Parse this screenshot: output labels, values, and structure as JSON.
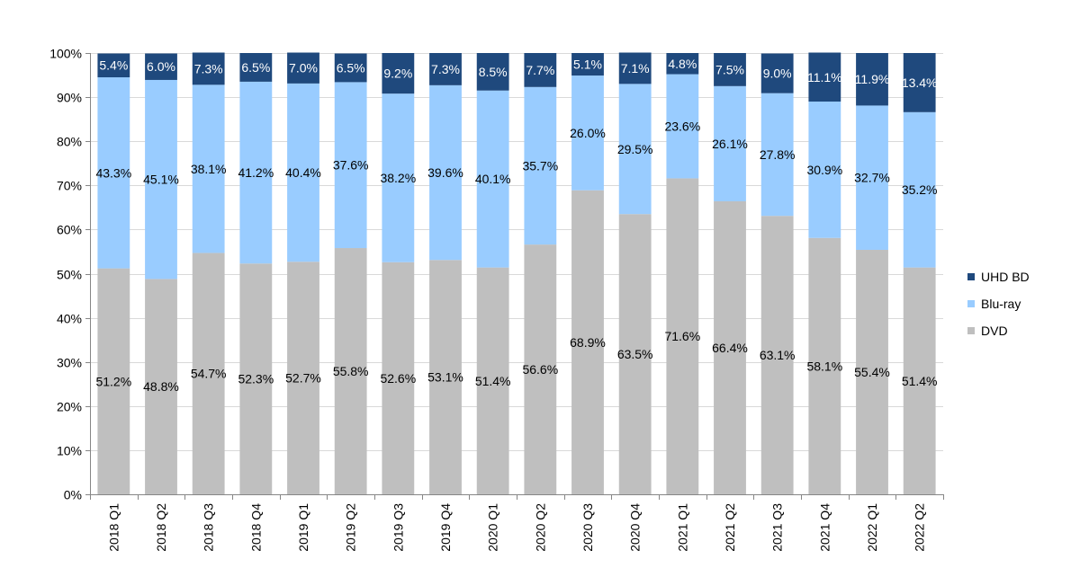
{
  "chart_data": {
    "type": "bar",
    "stacked": true,
    "title": "",
    "xlabel": "",
    "ylabel": "",
    "ylim": [
      0,
      100
    ],
    "yticks": [
      "0%",
      "10%",
      "20%",
      "30%",
      "40%",
      "50%",
      "60%",
      "70%",
      "80%",
      "90%",
      "100%"
    ],
    "grid": true,
    "legend_position": "right",
    "categories": [
      "2018 Q1",
      "2018 Q2",
      "2018 Q3",
      "2018 Q4",
      "2019 Q1",
      "2019 Q2",
      "2019 Q3",
      "2019 Q4",
      "2020 Q1",
      "2020 Q2",
      "2020 Q3",
      "2020 Q4",
      "2021 Q1",
      "2021 Q2",
      "2021 Q3",
      "2021 Q4",
      "2022 Q1",
      "2022 Q2"
    ],
    "series": [
      {
        "name": "DVD",
        "color": "#bfbfbf",
        "label_color": "#000000",
        "values": [
          51.2,
          48.8,
          54.7,
          52.3,
          52.7,
          55.8,
          52.6,
          53.1,
          51.4,
          56.6,
          68.9,
          63.5,
          71.6,
          66.4,
          63.1,
          58.1,
          55.4,
          51.4
        ],
        "labels": [
          "51.2%",
          "48.8%",
          "54.7%",
          "52.3%",
          "52.7%",
          "55.8%",
          "52.6%",
          "53.1%",
          "51.4%",
          "56.6%",
          "68.9%",
          "63.5%",
          "71.6%",
          "66.4%",
          "63.1%",
          "58.1%",
          "55.4%",
          "51.4%"
        ]
      },
      {
        "name": "Blu-ray",
        "color": "#99ccff",
        "label_color": "#000000",
        "values": [
          43.3,
          45.1,
          38.1,
          41.2,
          40.4,
          37.6,
          38.2,
          39.6,
          40.1,
          35.7,
          26.0,
          29.5,
          23.6,
          26.1,
          27.8,
          30.9,
          32.7,
          35.2
        ],
        "labels": [
          "43.3%",
          "45.1%",
          "38.1%",
          "41.2%",
          "40.4%",
          "37.6%",
          "38.2%",
          "39.6%",
          "40.1%",
          "35.7%",
          "26.0%",
          "29.5%",
          "23.6%",
          "26.1%",
          "27.8%",
          "30.9%",
          "32.7%",
          "35.2%"
        ]
      },
      {
        "name": "UHD BD",
        "color": "#1f497d",
        "label_color": "#ffffff",
        "values": [
          5.4,
          6.0,
          7.3,
          6.5,
          7.0,
          6.5,
          9.2,
          7.3,
          8.5,
          7.7,
          5.1,
          7.1,
          4.8,
          7.5,
          9.0,
          11.1,
          11.9,
          13.4
        ],
        "labels": [
          "5.4%",
          "6.0%",
          "7.3%",
          "6.5%",
          "7.0%",
          "6.5%",
          "9.2%",
          "7.3%",
          "8.5%",
          "7.7%",
          "5.1%",
          "7.1%",
          "4.8%",
          "7.5%",
          "9.0%",
          "11.1%",
          "11.9%",
          "13.4%"
        ]
      }
    ],
    "legend_order": [
      "UHD BD",
      "Blu-ray",
      "DVD"
    ],
    "colors": {
      "grid": "#d9d9d9",
      "axis": "#868686",
      "text": "#000000"
    }
  }
}
